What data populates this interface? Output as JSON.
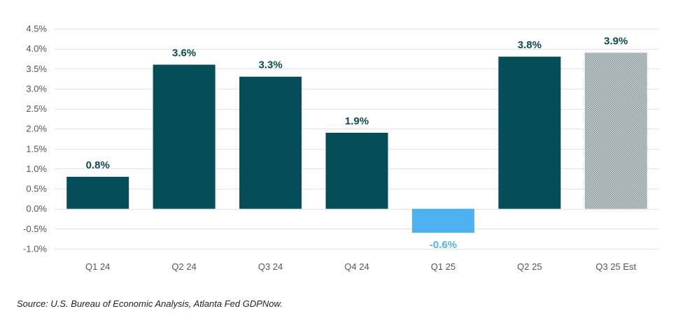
{
  "chart_data": {
    "type": "bar",
    "categories": [
      "Q1 24",
      "Q2 24",
      "Q3 24",
      "Q4 24",
      "Q1 25",
      "Q2 25",
      "Q3 25 Est"
    ],
    "values": [
      0.8,
      3.6,
      3.3,
      1.9,
      -0.6,
      3.8,
      3.9
    ],
    "data_labels": [
      "0.8%",
      "3.6%",
      "3.3%",
      "1.9%",
      "-0.6%",
      "3.8%",
      "3.9%"
    ],
    "yticks": [
      4.5,
      4.0,
      3.5,
      3.0,
      2.5,
      2.0,
      1.5,
      1.0,
      0.5,
      0.0,
      -0.5,
      -1.0
    ],
    "ytick_labels": [
      "4.5%",
      "4.0%",
      "3.5%",
      "3.0%",
      "2.5%",
      "2.0%",
      "1.5%",
      "1.0%",
      "0.5%",
      "0.0%",
      "-0.5%",
      "-1.0%"
    ],
    "ylim": [
      -1.0,
      4.5
    ],
    "estimate_category": "Q3 25 Est",
    "grid": true,
    "title": "",
    "xlabel": "",
    "ylabel": "",
    "colors": {
      "positive": "#054E57",
      "negative": "#4EB2F2",
      "estimate": "#8E9EA0",
      "positive_label": "#0A4A52",
      "negative_label": "#4EB2F2",
      "grid": "#E3E3E3",
      "tick_label": "#555555"
    }
  },
  "footer": {
    "source": "Source: U.S. Bureau of Economic Analysis, Atlanta Fed GDPNow."
  }
}
